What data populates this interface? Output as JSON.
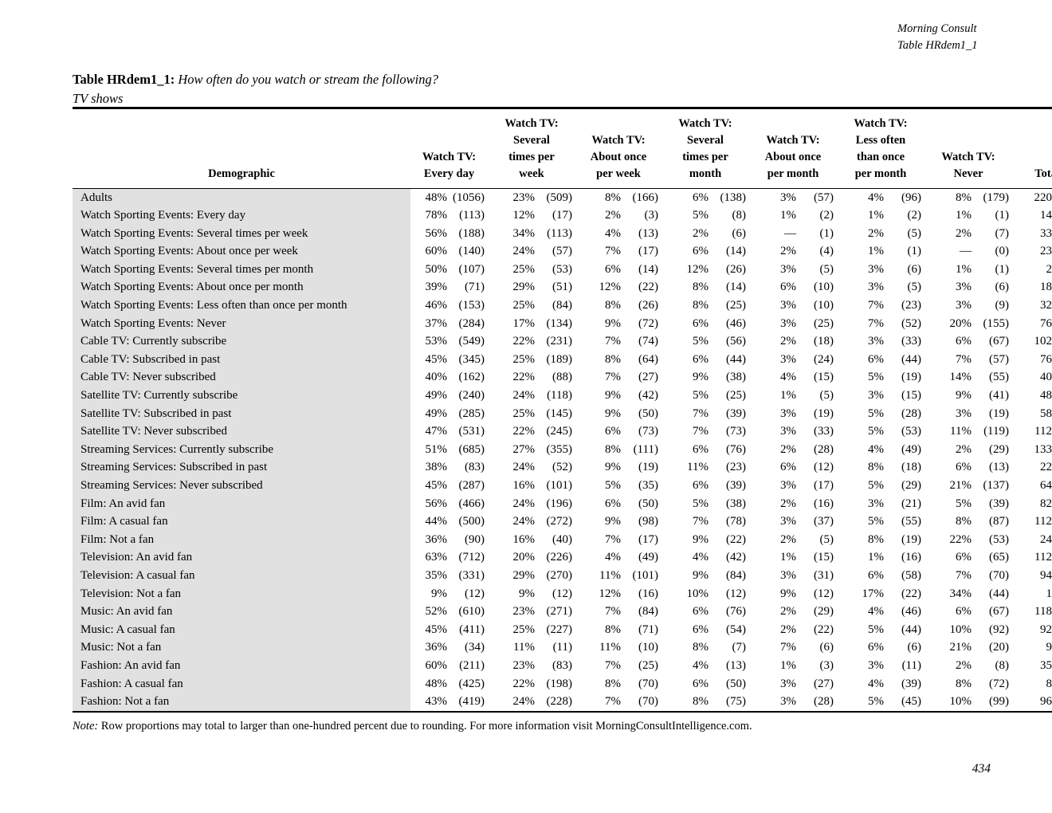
{
  "page_header": {
    "brand": "Morning Consult",
    "table_ref": "Table HRdem1_1"
  },
  "title": {
    "label": "Table HRdem1_1:",
    "question": "How often do you watch or stream the following?",
    "subtitle": "TV shows"
  },
  "table": {
    "demographic_header": "Demographic",
    "col_headers": [
      [
        "Watch TV:",
        "Every day"
      ],
      [
        "Watch TV:",
        "Several",
        "times per",
        "week"
      ],
      [
        "Watch TV:",
        "About once",
        "per week"
      ],
      [
        "Watch TV:",
        "Several",
        "times per",
        "month"
      ],
      [
        "Watch TV:",
        "About once",
        "per month"
      ],
      [
        "Watch TV:",
        "Less often",
        "than once",
        "per month"
      ],
      [
        "Watch TV:",
        "Never"
      ],
      [
        "Total"
      ]
    ],
    "total_header": "Total",
    "rows": [
      {
        "label": "Adults",
        "cells": [
          [
            "48%",
            "(1056)"
          ],
          [
            "23%",
            "(509)"
          ],
          [
            "8%",
            "(166)"
          ],
          [
            "6%",
            "(138)"
          ],
          [
            "3%",
            "(57)"
          ],
          [
            "4%",
            "(96)"
          ],
          [
            "8%",
            "(179)"
          ]
        ],
        "total": "220"
      },
      {
        "label": "Watch Sporting Events: Every day",
        "cells": [
          [
            "78%",
            "(113)"
          ],
          [
            "12%",
            "(17)"
          ],
          [
            "2%",
            "(3)"
          ],
          [
            "5%",
            "(8)"
          ],
          [
            "1%",
            "(2)"
          ],
          [
            "1%",
            "(2)"
          ],
          [
            "1%",
            "(1)"
          ]
        ],
        "total": "14"
      },
      {
        "label": "Watch Sporting Events: Several times per week",
        "cells": [
          [
            "56%",
            "(188)"
          ],
          [
            "34%",
            "(113)"
          ],
          [
            "4%",
            "(13)"
          ],
          [
            "2%",
            "(6)"
          ],
          [
            "—",
            "(1)"
          ],
          [
            "2%",
            "(5)"
          ],
          [
            "2%",
            "(7)"
          ]
        ],
        "total": "33"
      },
      {
        "label": "Watch Sporting Events: About once per week",
        "cells": [
          [
            "60%",
            "(140)"
          ],
          [
            "24%",
            "(57)"
          ],
          [
            "7%",
            "(17)"
          ],
          [
            "6%",
            "(14)"
          ],
          [
            "2%",
            "(4)"
          ],
          [
            "1%",
            "(1)"
          ],
          [
            "—",
            "(0)"
          ]
        ],
        "total": "23"
      },
      {
        "label": "Watch Sporting Events: Several times per month",
        "cells": [
          [
            "50%",
            "(107)"
          ],
          [
            "25%",
            "(53)"
          ],
          [
            "6%",
            "(14)"
          ],
          [
            "12%",
            "(26)"
          ],
          [
            "3%",
            "(5)"
          ],
          [
            "3%",
            "(6)"
          ],
          [
            "1%",
            "(1)"
          ]
        ],
        "total": "2"
      },
      {
        "label": "Watch Sporting Events: About once per month",
        "cells": [
          [
            "39%",
            "(71)"
          ],
          [
            "29%",
            "(51)"
          ],
          [
            "12%",
            "(22)"
          ],
          [
            "8%",
            "(14)"
          ],
          [
            "6%",
            "(10)"
          ],
          [
            "3%",
            "(5)"
          ],
          [
            "3%",
            "(6)"
          ]
        ],
        "total": "18"
      },
      {
        "label": "Watch Sporting Events: Less often than once per month",
        "cells": [
          [
            "46%",
            "(153)"
          ],
          [
            "25%",
            "(84)"
          ],
          [
            "8%",
            "(26)"
          ],
          [
            "8%",
            "(25)"
          ],
          [
            "3%",
            "(10)"
          ],
          [
            "7%",
            "(23)"
          ],
          [
            "3%",
            "(9)"
          ]
        ],
        "total": "32"
      },
      {
        "label": "Watch Sporting Events: Never",
        "cells": [
          [
            "37%",
            "(284)"
          ],
          [
            "17%",
            "(134)"
          ],
          [
            "9%",
            "(72)"
          ],
          [
            "6%",
            "(46)"
          ],
          [
            "3%",
            "(25)"
          ],
          [
            "7%",
            "(52)"
          ],
          [
            "20%",
            "(155)"
          ]
        ],
        "total": "76"
      },
      {
        "label": "Cable TV: Currently subscribe",
        "cells": [
          [
            "53%",
            "(549)"
          ],
          [
            "22%",
            "(231)"
          ],
          [
            "7%",
            "(74)"
          ],
          [
            "5%",
            "(56)"
          ],
          [
            "2%",
            "(18)"
          ],
          [
            "3%",
            "(33)"
          ],
          [
            "6%",
            "(67)"
          ]
        ],
        "total": "102"
      },
      {
        "label": "Cable TV: Subscribed in past",
        "cells": [
          [
            "45%",
            "(345)"
          ],
          [
            "25%",
            "(189)"
          ],
          [
            "8%",
            "(64)"
          ],
          [
            "6%",
            "(44)"
          ],
          [
            "3%",
            "(24)"
          ],
          [
            "6%",
            "(44)"
          ],
          [
            "7%",
            "(57)"
          ]
        ],
        "total": "76"
      },
      {
        "label": "Cable TV: Never subscribed",
        "cells": [
          [
            "40%",
            "(162)"
          ],
          [
            "22%",
            "(88)"
          ],
          [
            "7%",
            "(27)"
          ],
          [
            "9%",
            "(38)"
          ],
          [
            "4%",
            "(15)"
          ],
          [
            "5%",
            "(19)"
          ],
          [
            "14%",
            "(55)"
          ]
        ],
        "total": "40"
      },
      {
        "label": "Satellite TV: Currently subscribe",
        "cells": [
          [
            "49%",
            "(240)"
          ],
          [
            "24%",
            "(118)"
          ],
          [
            "9%",
            "(42)"
          ],
          [
            "5%",
            "(25)"
          ],
          [
            "1%",
            "(5)"
          ],
          [
            "3%",
            "(15)"
          ],
          [
            "9%",
            "(41)"
          ]
        ],
        "total": "48"
      },
      {
        "label": "Satellite TV: Subscribed in past",
        "cells": [
          [
            "49%",
            "(285)"
          ],
          [
            "25%",
            "(145)"
          ],
          [
            "9%",
            "(50)"
          ],
          [
            "7%",
            "(39)"
          ],
          [
            "3%",
            "(19)"
          ],
          [
            "5%",
            "(28)"
          ],
          [
            "3%",
            "(19)"
          ]
        ],
        "total": "58"
      },
      {
        "label": "Satellite TV: Never subscribed",
        "cells": [
          [
            "47%",
            "(531)"
          ],
          [
            "22%",
            "(245)"
          ],
          [
            "6%",
            "(73)"
          ],
          [
            "7%",
            "(73)"
          ],
          [
            "3%",
            "(33)"
          ],
          [
            "5%",
            "(53)"
          ],
          [
            "11%",
            "(119)"
          ]
        ],
        "total": "112"
      },
      {
        "label": "Streaming Services: Currently subscribe",
        "cells": [
          [
            "51%",
            "(685)"
          ],
          [
            "27%",
            "(355)"
          ],
          [
            "8%",
            "(111)"
          ],
          [
            "6%",
            "(76)"
          ],
          [
            "2%",
            "(28)"
          ],
          [
            "4%",
            "(49)"
          ],
          [
            "2%",
            "(29)"
          ]
        ],
        "total": "133"
      },
      {
        "label": "Streaming Services: Subscribed in past",
        "cells": [
          [
            "38%",
            "(83)"
          ],
          [
            "24%",
            "(52)"
          ],
          [
            "9%",
            "(19)"
          ],
          [
            "11%",
            "(23)"
          ],
          [
            "6%",
            "(12)"
          ],
          [
            "8%",
            "(18)"
          ],
          [
            "6%",
            "(13)"
          ]
        ],
        "total": "22"
      },
      {
        "label": "Streaming Services: Never subscribed",
        "cells": [
          [
            "45%",
            "(287)"
          ],
          [
            "16%",
            "(101)"
          ],
          [
            "5%",
            "(35)"
          ],
          [
            "6%",
            "(39)"
          ],
          [
            "3%",
            "(17)"
          ],
          [
            "5%",
            "(29)"
          ],
          [
            "21%",
            "(137)"
          ]
        ],
        "total": "64"
      },
      {
        "label": "Film: An avid fan",
        "cells": [
          [
            "56%",
            "(466)"
          ],
          [
            "24%",
            "(196)"
          ],
          [
            "6%",
            "(50)"
          ],
          [
            "5%",
            "(38)"
          ],
          [
            "2%",
            "(16)"
          ],
          [
            "3%",
            "(21)"
          ],
          [
            "5%",
            "(39)"
          ]
        ],
        "total": "82"
      },
      {
        "label": "Film: A casual fan",
        "cells": [
          [
            "44%",
            "(500)"
          ],
          [
            "24%",
            "(272)"
          ],
          [
            "9%",
            "(98)"
          ],
          [
            "7%",
            "(78)"
          ],
          [
            "3%",
            "(37)"
          ],
          [
            "5%",
            "(55)"
          ],
          [
            "8%",
            "(87)"
          ]
        ],
        "total": "112"
      },
      {
        "label": "Film: Not a fan",
        "cells": [
          [
            "36%",
            "(90)"
          ],
          [
            "16%",
            "(40)"
          ],
          [
            "7%",
            "(17)"
          ],
          [
            "9%",
            "(22)"
          ],
          [
            "2%",
            "(5)"
          ],
          [
            "8%",
            "(19)"
          ],
          [
            "22%",
            "(53)"
          ]
        ],
        "total": "24"
      },
      {
        "label": "Television: An avid fan",
        "cells": [
          [
            "63%",
            "(712)"
          ],
          [
            "20%",
            "(226)"
          ],
          [
            "4%",
            "(49)"
          ],
          [
            "4%",
            "(42)"
          ],
          [
            "1%",
            "(15)"
          ],
          [
            "1%",
            "(16)"
          ],
          [
            "6%",
            "(65)"
          ]
        ],
        "total": "112"
      },
      {
        "label": "Television: A casual fan",
        "cells": [
          [
            "35%",
            "(331)"
          ],
          [
            "29%",
            "(270)"
          ],
          [
            "11%",
            "(101)"
          ],
          [
            "9%",
            "(84)"
          ],
          [
            "3%",
            "(31)"
          ],
          [
            "6%",
            "(58)"
          ],
          [
            "7%",
            "(70)"
          ]
        ],
        "total": "94"
      },
      {
        "label": "Television: Not a fan",
        "cells": [
          [
            "9%",
            "(12)"
          ],
          [
            "9%",
            "(12)"
          ],
          [
            "12%",
            "(16)"
          ],
          [
            "10%",
            "(12)"
          ],
          [
            "9%",
            "(12)"
          ],
          [
            "17%",
            "(22)"
          ],
          [
            "34%",
            "(44)"
          ]
        ],
        "total": "1"
      },
      {
        "label": "Music: An avid fan",
        "cells": [
          [
            "52%",
            "(610)"
          ],
          [
            "23%",
            "(271)"
          ],
          [
            "7%",
            "(84)"
          ],
          [
            "6%",
            "(76)"
          ],
          [
            "2%",
            "(29)"
          ],
          [
            "4%",
            "(46)"
          ],
          [
            "6%",
            "(67)"
          ]
        ],
        "total": "118"
      },
      {
        "label": "Music: A casual fan",
        "cells": [
          [
            "45%",
            "(411)"
          ],
          [
            "25%",
            "(227)"
          ],
          [
            "8%",
            "(71)"
          ],
          [
            "6%",
            "(54)"
          ],
          [
            "2%",
            "(22)"
          ],
          [
            "5%",
            "(44)"
          ],
          [
            "10%",
            "(92)"
          ]
        ],
        "total": "92"
      },
      {
        "label": "Music: Not a fan",
        "cells": [
          [
            "36%",
            "(34)"
          ],
          [
            "11%",
            "(11)"
          ],
          [
            "11%",
            "(10)"
          ],
          [
            "8%",
            "(7)"
          ],
          [
            "7%",
            "(6)"
          ],
          [
            "6%",
            "(6)"
          ],
          [
            "21%",
            "(20)"
          ]
        ],
        "total": "9"
      },
      {
        "label": "Fashion: An avid fan",
        "cells": [
          [
            "60%",
            "(211)"
          ],
          [
            "23%",
            "(83)"
          ],
          [
            "7%",
            "(25)"
          ],
          [
            "4%",
            "(13)"
          ],
          [
            "1%",
            "(3)"
          ],
          [
            "3%",
            "(11)"
          ],
          [
            "2%",
            "(8)"
          ]
        ],
        "total": "35"
      },
      {
        "label": "Fashion: A casual fan",
        "cells": [
          [
            "48%",
            "(425)"
          ],
          [
            "22%",
            "(198)"
          ],
          [
            "8%",
            "(70)"
          ],
          [
            "6%",
            "(50)"
          ],
          [
            "3%",
            "(27)"
          ],
          [
            "4%",
            "(39)"
          ],
          [
            "8%",
            "(72)"
          ]
        ],
        "total": "8"
      },
      {
        "label": "Fashion: Not a fan",
        "cells": [
          [
            "43%",
            "(419)"
          ],
          [
            "24%",
            "(228)"
          ],
          [
            "7%",
            "(70)"
          ],
          [
            "8%",
            "(75)"
          ],
          [
            "3%",
            "(28)"
          ],
          [
            "5%",
            "(45)"
          ],
          [
            "10%",
            "(99)"
          ]
        ],
        "total": "96"
      }
    ]
  },
  "footer": {
    "note_label": "Note:",
    "note_text": "Row proportions may total to larger than one-hundred percent due to rounding. For more information visit MorningConsultIntelligence.com.",
    "page_number": "434"
  },
  "colors": {
    "text": "#000000",
    "demographic_band": "#e1e1e1",
    "background": "#ffffff"
  }
}
